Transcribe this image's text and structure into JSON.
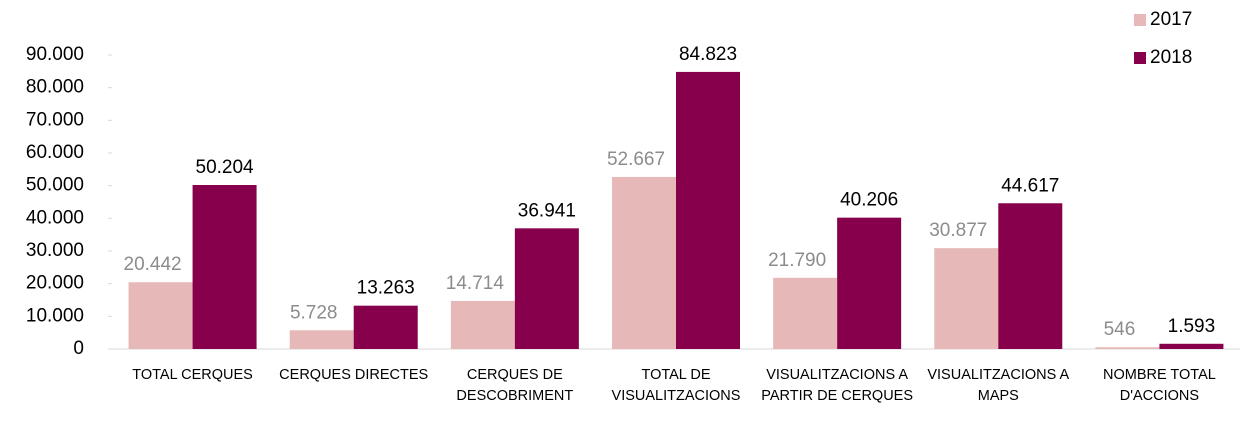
{
  "chart_data": {
    "type": "bar",
    "categories": [
      "TOTAL CERQUES",
      "CERQUES DIRECTES",
      "CERQUES DE DESCOBRIMENT",
      "TOTAL DE VISUALITZACIONS",
      "VISUALITZACIONS A PARTIR DE CERQUES",
      "VISUALITZACIONS A MAPS",
      "NOMBRE TOTAL D'ACCIONS"
    ],
    "series": [
      {
        "name": "2017",
        "color": "#e6b9b8",
        "label_color": "#8c8c8c",
        "values": [
          20442,
          5728,
          14714,
          52667,
          21790,
          30877,
          546
        ],
        "value_labels": [
          "20.442",
          "5.728",
          "14.714",
          "52.667",
          "21.790",
          "30.877",
          "546"
        ]
      },
      {
        "name": "2018",
        "color": "#87004b",
        "label_color": "#000000",
        "values": [
          50204,
          13263,
          36941,
          84823,
          40206,
          44617,
          1593
        ],
        "value_labels": [
          "50.204",
          "13.263",
          "36.941",
          "84.823",
          "40.206",
          "44.617",
          "1.593"
        ]
      }
    ],
    "ylim": [
      0,
      90000
    ],
    "yticks": [
      0,
      {
        "value": 10000,
        "label": "10.000"
      },
      {
        "value": 20000,
        "label": "20.000"
      },
      {
        "value": 30000,
        "label": "30.000"
      },
      {
        "value": 40000,
        "label": "40.000"
      },
      {
        "value": 50000,
        "label": "50.000"
      },
      {
        "value": 60000,
        "label": "60.000"
      },
      {
        "value": 70000,
        "label": "70.000"
      },
      {
        "value": 80000,
        "label": "80.000"
      },
      {
        "value": 90000,
        "label": "90.000"
      }
    ],
    "legend": "top-right"
  }
}
